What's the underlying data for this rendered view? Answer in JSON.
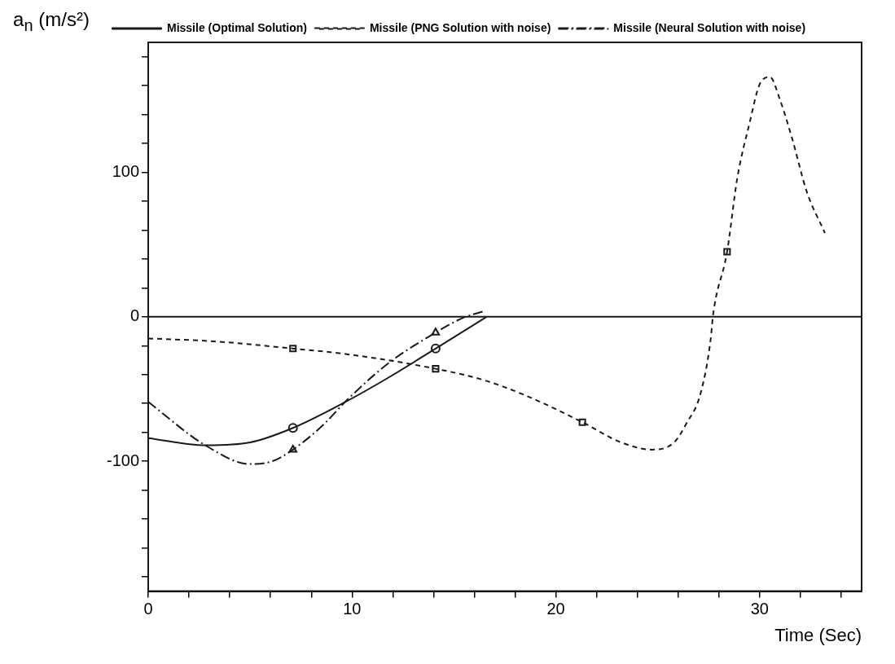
{
  "chart_data": {
    "type": "line",
    "ylabel": "a$_{n}$ (m/s²)",
    "xlabel": "Time (Sec)",
    "xlim": [
      0,
      35
    ],
    "ylim": [
      -190,
      190
    ],
    "xticks": [
      0,
      {
        "value": 2,
        "label": null
      },
      {
        "value": 4,
        "label": null
      },
      {
        "value": 6,
        "label": null
      },
      {
        "value": 8,
        "label": null
      },
      10,
      {
        "value": 12,
        "label": null
      },
      {
        "value": 14,
        "label": null
      },
      {
        "value": 16,
        "label": null
      },
      {
        "value": 18,
        "label": null
      },
      20,
      {
        "value": 22,
        "label": null
      },
      {
        "value": 24,
        "label": null
      },
      {
        "value": 26,
        "label": null
      },
      {
        "value": 28,
        "label": null
      },
      30,
      {
        "value": 32,
        "label": null
      },
      {
        "value": 34,
        "label": null
      }
    ],
    "yticks": [
      {
        "value": -180,
        "label": null
      },
      {
        "value": -160,
        "label": null
      },
      {
        "value": -140,
        "label": null
      },
      {
        "value": -120,
        "label": null
      },
      -100,
      {
        "value": -80,
        "label": null
      },
      {
        "value": -60,
        "label": null
      },
      {
        "value": -40,
        "label": null
      },
      {
        "value": -20,
        "label": null
      },
      0,
      {
        "value": 20,
        "label": null
      },
      {
        "value": 40,
        "label": null
      },
      {
        "value": 60,
        "label": null
      },
      {
        "value": 80,
        "label": null
      },
      100,
      {
        "value": 120,
        "label": null
      },
      {
        "value": 140,
        "label": null
      },
      {
        "value": 160,
        "label": null
      },
      {
        "value": 180,
        "label": null
      }
    ],
    "grid": false,
    "legend": "top left",
    "ref_lines": [
      {
        "axis": "y",
        "value": 0,
        "color": "#1a1a1a"
      }
    ],
    "series": [
      {
        "name": "Missile (Optimal Solution)",
        "color": "#1a1a1a",
        "line_style": "solid",
        "x": [
          0,
          2.8,
          5.0,
          7.1,
          9.8,
          11.8,
          14.1,
          16.6
        ],
        "values": [
          -84,
          -89,
          -87,
          -77,
          -58,
          -42,
          -22,
          0
        ]
      },
      {
        "name": "Missile (PNG Solution with noise)",
        "color": "#1a1a1a",
        "line_style": "dashed",
        "x": [
          0,
          3.2,
          7.1,
          9.8,
          14.1,
          16.5,
          18.6,
          21.3,
          23.2,
          24.7,
          25.8,
          26.4,
          27.1,
          27.6,
          27.7,
          28.4,
          28.9,
          29.5,
          30.0,
          30.5,
          31.0,
          31.6,
          32.3,
          33.2
        ],
        "values": [
          -15,
          -17,
          -22,
          -26,
          -36,
          -44,
          -55,
          -73,
          -87,
          -92,
          -87,
          -74,
          -53,
          -15,
          0,
          45,
          96,
          134,
          161,
          166,
          150,
          123,
          87,
          58
        ]
      },
      {
        "name": "Missile (Neural Solution with noise)",
        "color": "#1a1a1a",
        "line_style": "dashdot",
        "x": [
          0,
          2.8,
          5.0,
          6.1,
          7.1,
          8.5,
          9.8,
          11.8,
          14.1,
          15.4,
          16.5
        ],
        "values": [
          -59,
          -89,
          -102,
          -100,
          -92,
          -76,
          -57,
          -32,
          -11,
          -1,
          4
        ]
      },
      {
        "type": "scatter",
        "color": "#1a1a1a",
        "marker": "circle",
        "x": [
          7.1,
          14.1
        ],
        "values": [
          -77,
          -22
        ]
      },
      {
        "type": "scatter",
        "color": "#1a1a1a",
        "marker": "square",
        "x": [
          7.1,
          14.1,
          21.3,
          28.4
        ],
        "values": [
          -22,
          -36,
          -73,
          45
        ]
      },
      {
        "type": "scatter",
        "color": "#1a1a1a",
        "marker": "triangle",
        "x": [
          7.1,
          14.1
        ],
        "values": [
          -92,
          -11
        ]
      }
    ]
  }
}
